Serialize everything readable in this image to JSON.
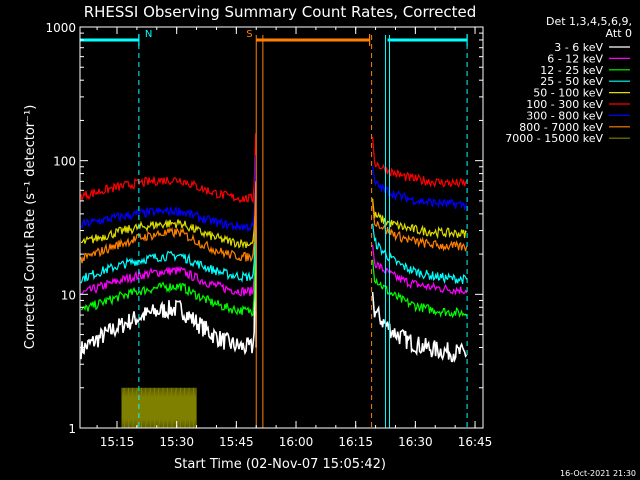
{
  "chart_data": {
    "type": "line",
    "title": "RHESSI Observing Summary Count Rates, Corrected",
    "ylabel": "Corrected Count Rate (s⁻¹ detector⁻¹)",
    "xlabel": "Start Time (02-Nov-07 15:05:42)",
    "y_scale": "log",
    "ylim": [
      1,
      1000
    ],
    "xlim": [
      "15:05:42",
      "16:47:00"
    ],
    "x_ticks": [
      "15:15",
      "15:30",
      "15:45",
      "16:00",
      "16:15",
      "16:30",
      "16:45"
    ],
    "y_ticks": [
      "1",
      "10",
      "100",
      "1000"
    ],
    "header_lines": [
      "Det 1,3,4,5,6,9,",
      "Att 0"
    ],
    "footer_timestamp": "16-Oct-2021 21:30",
    "grid": false,
    "legend_position": "right",
    "series": [
      {
        "name": "3 - 6 keV",
        "color": "#ffffff",
        "first_orbit": {
          "start": 3.8,
          "peak": 7.8,
          "end": 4.0
        },
        "second_orbit": {
          "start": 8.0,
          "end": 3.5
        }
      },
      {
        "name": "6 - 12 keV",
        "color": "#ff00ff",
        "first_orbit": {
          "start": 10.0,
          "peak": 15.0,
          "end": 10.5
        },
        "second_orbit": {
          "start": 18.0,
          "end": 10.5
        }
      },
      {
        "name": "12 - 25 keV",
        "color": "#00ff00",
        "first_orbit": {
          "start": 7.5,
          "peak": 11.5,
          "end": 7.5
        },
        "second_orbit": {
          "start": 14.0,
          "end": 7.0
        }
      },
      {
        "name": "25 - 50 keV",
        "color": "#00ffff",
        "first_orbit": {
          "start": 13.0,
          "peak": 19.5,
          "end": 13.5
        },
        "second_orbit": {
          "start": 26.0,
          "end": 12.5
        }
      },
      {
        "name": "50 - 100 keV",
        "color": "#dddd00",
        "first_orbit": {
          "start": 24.0,
          "peak": 34.0,
          "end": 24.0
        },
        "second_orbit": {
          "start": 40.0,
          "end": 28.0
        }
      },
      {
        "name": "100 - 300 keV",
        "color": "#ff0000",
        "first_orbit": {
          "start": 54.0,
          "peak": 72.0,
          "end": 52.0
        },
        "second_orbit": {
          "start": 100.0,
          "end": 66.0
        }
      },
      {
        "name": "300 - 800 keV",
        "color": "#0000ff",
        "first_orbit": {
          "start": 33.0,
          "peak": 42.0,
          "end": 32.0
        },
        "second_orbit": {
          "start": 70.0,
          "end": 46.0
        }
      },
      {
        "name": "800 - 7000 keV",
        "color": "#ff8000",
        "first_orbit": {
          "start": 18.0,
          "peak": 29.0,
          "end": 19.0
        },
        "second_orbit": {
          "start": 37.0,
          "end": 22.0
        }
      },
      {
        "name": "7000 - 15000 keV",
        "color": "#808000",
        "first_orbit": {
          "start": 2.0,
          "peak": 2.0,
          "end": 1.0
        },
        "second_orbit": {
          "start": 1.0,
          "end": 1.0
        }
      }
    ],
    "flags": [
      {
        "label": "N",
        "color": "#00ffff",
        "start": "15:05:42",
        "end": "15:20:30",
        "level": 800
      },
      {
        "label": "S",
        "color": "#ff8000",
        "start": "15:50:00",
        "end": "16:18:30",
        "level": 800
      },
      {
        "label": "",
        "color": "#00ffff",
        "start": "16:23:00",
        "end": "16:43:00",
        "level": 800
      }
    ],
    "markers": [
      {
        "time": "15:20:30",
        "color": "#00ffff",
        "style": "dashed"
      },
      {
        "time": "15:50:00",
        "color": "#ff8000",
        "style": "solid"
      },
      {
        "time": "15:51:40",
        "color": "#ff8000",
        "style": "solid"
      },
      {
        "time": "16:19:00",
        "color": "#ff8000",
        "style": "dashed"
      },
      {
        "time": "16:22:30",
        "color": "#00ffff",
        "style": "solid"
      },
      {
        "time": "16:23:30",
        "color": "#00ffff",
        "style": "solid"
      },
      {
        "time": "16:43:00",
        "color": "#00ffff",
        "style": "dashed"
      }
    ],
    "data_gap": {
      "start": "15:50:00",
      "end": "16:19:00"
    }
  }
}
